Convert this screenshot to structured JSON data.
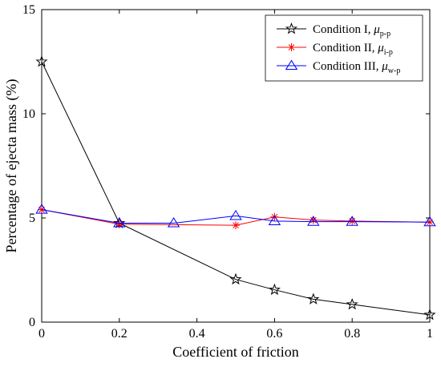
{
  "chart_data": {
    "type": "line",
    "title": "",
    "xlabel": "Coefficient of friction",
    "ylabel": "Percentage of ejecta mass (%)",
    "xlim": [
      0,
      1
    ],
    "ylim": [
      0,
      15
    ],
    "xticks": [
      0,
      0.2,
      0.4,
      0.6,
      0.8,
      1
    ],
    "xtick_labels": [
      "0",
      "0.2",
      "0.4",
      "0.6",
      "0.8",
      "1"
    ],
    "yticks": [
      0,
      5,
      10,
      15
    ],
    "ytick_labels": [
      "0",
      "5",
      "10",
      "15"
    ],
    "grid": false,
    "legend_position": "top-right",
    "series": [
      {
        "name": "Condition I, ",
        "mu": "μ",
        "sub": "p-p",
        "color": "#000000",
        "marker": "star",
        "x": [
          0,
          0.2,
          0.5,
          0.6,
          0.7,
          0.8,
          1
        ],
        "y": [
          12.5,
          4.75,
          2.05,
          1.55,
          1.1,
          0.85,
          0.35
        ]
      },
      {
        "name": "Condition II, ",
        "mu": "μ",
        "sub": "i-p",
        "color": "#ff0000",
        "marker": "asterisk",
        "x": [
          0,
          0.2,
          0.5,
          0.6,
          0.7,
          0.8,
          1
        ],
        "y": [
          5.4,
          4.7,
          4.65,
          5.05,
          4.9,
          4.85,
          4.8
        ]
      },
      {
        "name": "Condition III, ",
        "mu": "μ",
        "sub": "w-p",
        "color": "#0000ff",
        "marker": "triangle",
        "x": [
          0,
          0.2,
          0.34,
          0.5,
          0.6,
          0.7,
          0.8,
          1
        ],
        "y": [
          5.4,
          4.75,
          4.75,
          5.1,
          4.85,
          4.82,
          4.82,
          4.8
        ]
      }
    ]
  }
}
